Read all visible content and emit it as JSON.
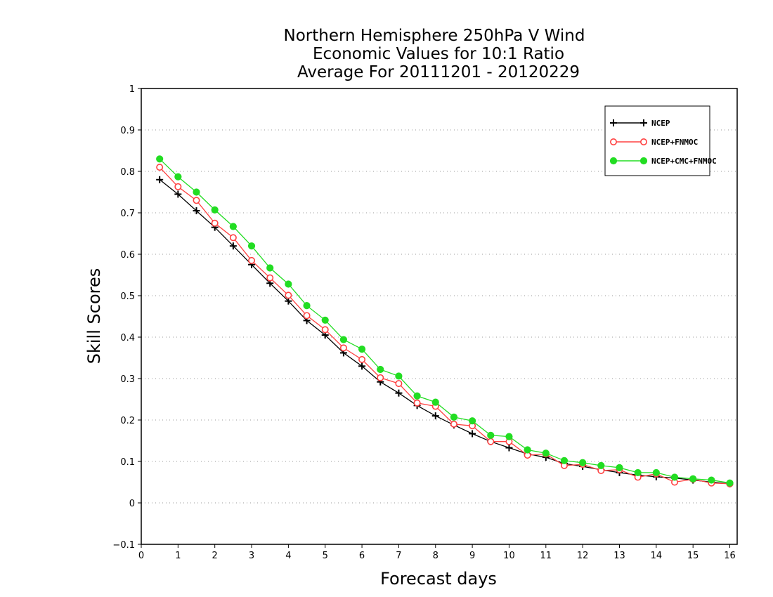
{
  "chart_data": {
    "type": "line",
    "title": [
      "Northern Hemisphere 250hPa V Wind",
      "Economic Values for 10:1 Ratio",
      "Average For 20111201 - 20120229"
    ],
    "xlabel": "Forecast days",
    "ylabel": "Skill Scores",
    "xlim": [
      0,
      16.2
    ],
    "ylim": [
      -0.1,
      1
    ],
    "xticks": [
      0,
      1,
      2,
      3,
      4,
      5,
      6,
      7,
      8,
      9,
      10,
      11,
      12,
      13,
      14,
      15,
      16
    ],
    "yticks": [
      -0.1,
      0,
      0.1,
      0.2,
      0.3,
      0.4,
      0.5,
      0.6,
      0.7,
      0.8,
      0.9,
      1
    ],
    "ytick_labels": [
      "−0.1",
      "0",
      "0.1",
      "0.2",
      "0.3",
      "0.4",
      "0.5",
      "0.6",
      "0.7",
      "0.8",
      "0.9",
      "1"
    ],
    "grid": "horizontal dotted",
    "legend_position": "top-right",
    "x": [
      0.5,
      1,
      1.5,
      2,
      2.5,
      3,
      3.5,
      4,
      4.5,
      5,
      5.5,
      6,
      6.5,
      7,
      7.5,
      8,
      8.5,
      9,
      9.5,
      10,
      10.5,
      11,
      11.5,
      12,
      12.5,
      13,
      13.5,
      14,
      14.5,
      15,
      15.5,
      16
    ],
    "series": [
      {
        "name": "NCEP",
        "color": "#000000",
        "marker": "plus",
        "values": [
          0.78,
          0.745,
          0.705,
          0.665,
          0.62,
          0.575,
          0.53,
          0.487,
          0.44,
          0.405,
          0.362,
          0.33,
          0.292,
          0.265,
          0.235,
          0.21,
          0.188,
          0.167,
          0.148,
          0.133,
          0.118,
          0.11,
          0.095,
          0.088,
          0.08,
          0.073,
          0.067,
          0.063,
          0.06,
          0.055,
          0.05,
          0.046
        ]
      },
      {
        "name": "NCEP+FNMOC",
        "color": "#ff4040",
        "marker": "open-circle",
        "values": [
          0.81,
          0.763,
          0.73,
          0.675,
          0.64,
          0.585,
          0.543,
          0.501,
          0.452,
          0.418,
          0.374,
          0.346,
          0.302,
          0.288,
          0.241,
          0.233,
          0.19,
          0.186,
          0.148,
          0.148,
          0.115,
          0.118,
          0.09,
          0.093,
          0.078,
          0.08,
          0.062,
          0.07,
          0.05,
          0.057,
          0.048,
          0.046
        ]
      },
      {
        "name": "NCEP+CMC+FNMOC",
        "color": "#22dd22",
        "marker": "filled-circle",
        "values": [
          0.83,
          0.787,
          0.75,
          0.707,
          0.667,
          0.62,
          0.567,
          0.528,
          0.476,
          0.441,
          0.394,
          0.371,
          0.322,
          0.306,
          0.258,
          0.243,
          0.207,
          0.198,
          0.163,
          0.16,
          0.128,
          0.12,
          0.102,
          0.097,
          0.09,
          0.085,
          0.073,
          0.073,
          0.062,
          0.058,
          0.055,
          0.048
        ]
      }
    ]
  }
}
